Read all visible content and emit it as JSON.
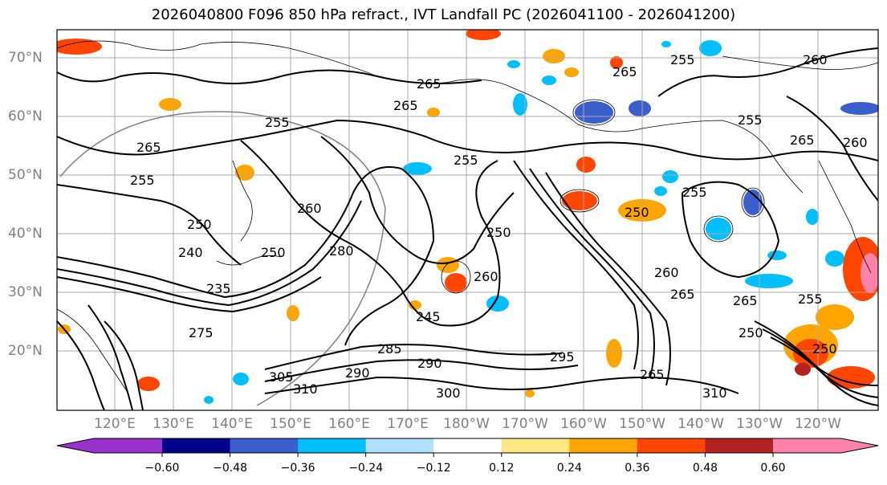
{
  "title": "2026040800 F096 850 hPa refract., IVT Landfall PC (2026041100 - 2026041200)",
  "latitude_labels": [
    "70°N",
    "60°N",
    "50°N",
    "40°N",
    "30°N",
    "20°N"
  ],
  "longitude_labels": [
    "120°E",
    "130°E",
    "140°E",
    "150°E",
    "160°E",
    "170°E",
    "180°W",
    "170°W",
    "160°W",
    "150°W",
    "140°W",
    "130°W",
    "120°W"
  ],
  "contour_labels": [
    "265",
    "255",
    "265",
    "265",
    "255",
    "260",
    "265",
    "255",
    "250",
    "260",
    "255",
    "265",
    "255",
    "250",
    "240",
    "250",
    "235",
    "260",
    "280",
    "245",
    "260",
    "250",
    "255",
    "260",
    "265",
    "265",
    "255",
    "250",
    "275",
    "285",
    "290",
    "290",
    "295",
    "305",
    "310",
    "300",
    "265",
    "310",
    "250"
  ],
  "colorbar": {
    "ticks": [
      "−0.60",
      "−0.48",
      "−0.36",
      "−0.24",
      "−0.12",
      "0.12",
      "0.24",
      "0.36",
      "0.48",
      "0.60"
    ],
    "colors": [
      "#9932cc",
      "#00008b",
      "#3a5fcd",
      "#00bfff",
      "#b0e2ff",
      "#ffffff",
      "#ffe884",
      "#ffa500",
      "#ff4500",
      "#b22222",
      "#ff82ab"
    ]
  }
}
